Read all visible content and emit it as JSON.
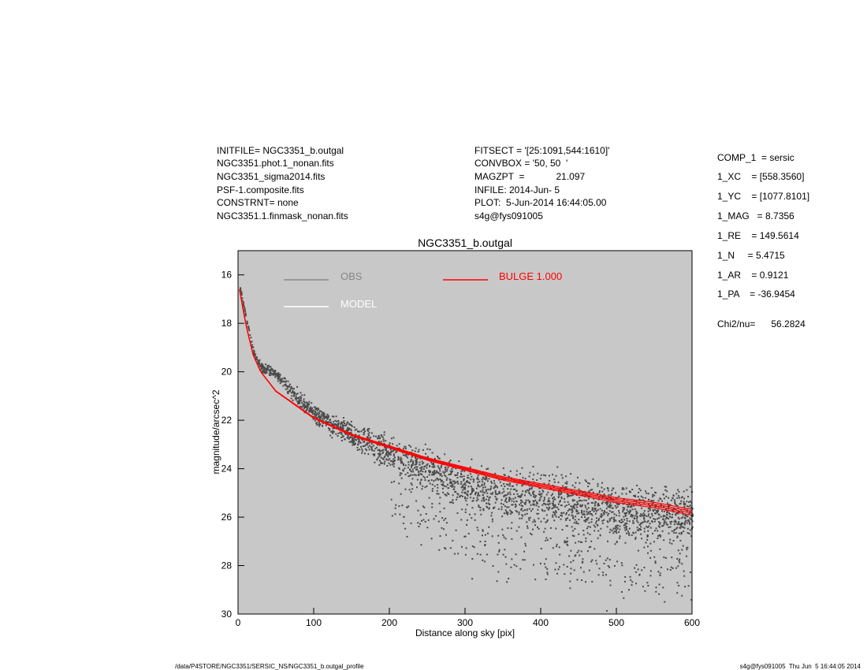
{
  "header_left": [
    "INITFILE= NGC3351_b.outgal",
    "NGC3351.phot.1_nonan.fits",
    "NGC3351_sigma2014.fits",
    "PSF-1.composite.fits",
    "CONSTRNT= none",
    "NGC3351.1.finmask_nonan.fits"
  ],
  "header_mid": [
    "FITSECT = '[25:1091,544:1610]'",
    "CONVBOX = '50, 50  '",
    "MAGZPT  =            21.097",
    "INFILE: 2014-Jun- 5",
    "PLOT:  5-Jun-2014 16:44:05.00",
    "s4g@fys091005"
  ],
  "params": [
    "COMP_1  = sersic",
    "1_XC    = [558.3560]",
    "1_YC    = [1077.8101]",
    "1_MAG   = 8.7356",
    "1_RE    = 149.5614",
    "1_N     = 5.4715",
    "1_AR    = 0.9121",
    "1_PA    = -36.9454"
  ],
  "chi2": "Chi2/nu=      56.2824",
  "footer_left": "/data/P4STORE/NGC3351/SERSIC_NS/NGC3351_b.outgal_profile",
  "footer_right": "s4g@fys091005  Thu Jun  5 16:44:05 2014",
  "colors": {
    "plot_bg": "#c8c8c8",
    "obs": "#4a4a4a",
    "model": "#ffffff",
    "bulge": "#ff0000"
  },
  "chart_data": {
    "type": "scatter",
    "title": "NGC3351_b.outgal",
    "xlabel": "Distance along sky [pix]",
    "ylabel": "magnitude/arcsec^2",
    "xlim": [
      0,
      600
    ],
    "ylim": [
      30,
      15
    ],
    "x_ticks": [
      0,
      100,
      200,
      300,
      400,
      500,
      600
    ],
    "y_ticks": [
      16,
      18,
      20,
      22,
      24,
      26,
      28,
      30
    ],
    "legend": [
      {
        "name": "OBS",
        "color": "#888888"
      },
      {
        "name": "MODEL",
        "color": "#ffffff"
      },
      {
        "name": "BULGE  1.000",
        "color": "#ff0000"
      }
    ],
    "obs_trend": [
      [
        2,
        16.5
      ],
      [
        10,
        17.8
      ],
      [
        20,
        19.2
      ],
      [
        30,
        19.8
      ],
      [
        40,
        19.9
      ],
      [
        50,
        20.1
      ],
      [
        70,
        20.8
      ],
      [
        100,
        21.7
      ],
      [
        150,
        22.6
      ],
      [
        200,
        23.3
      ],
      [
        250,
        24.0
      ],
      [
        300,
        24.7
      ],
      [
        350,
        25.0
      ],
      [
        400,
        25.3
      ],
      [
        450,
        25.5
      ],
      [
        500,
        25.7
      ],
      [
        550,
        25.8
      ],
      [
        600,
        25.9
      ]
    ],
    "bulge_profile": [
      [
        2,
        16.6
      ],
      [
        10,
        18.0
      ],
      [
        20,
        19.3
      ],
      [
        30,
        20.0
      ],
      [
        50,
        20.8
      ],
      [
        100,
        21.9
      ],
      [
        150,
        22.6
      ],
      [
        200,
        23.1
      ],
      [
        250,
        23.6
      ],
      [
        300,
        24.0
      ],
      [
        350,
        24.4
      ],
      [
        400,
        24.7
      ],
      [
        450,
        25.0
      ],
      [
        500,
        25.3
      ],
      [
        550,
        25.5
      ],
      [
        600,
        25.8
      ]
    ]
  }
}
